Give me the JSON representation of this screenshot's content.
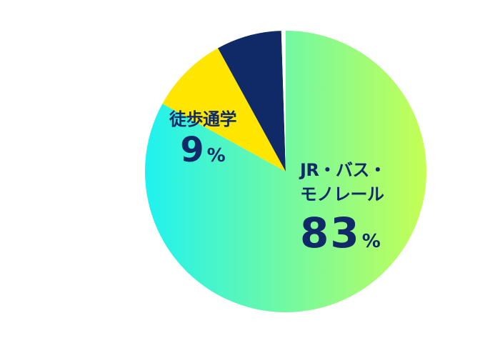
{
  "chart_data": {
    "type": "pie",
    "slices": [
      {
        "label_lines": [
          "JR・バス・",
          "モノレール"
        ],
        "value": 83,
        "display": "83",
        "unit": "%",
        "color_start": "#1ff2f0",
        "color_end": "#c5ff54"
      },
      {
        "label_lines": [
          "徒歩通学"
        ],
        "value": 9,
        "display": "9",
        "unit": "%",
        "color": "#ffe600"
      },
      {
        "label_lines": [],
        "value": 7.5,
        "display": "",
        "unit": "",
        "color": "#0f2a66"
      },
      {
        "label_lines": [],
        "value": 0.5,
        "display": "",
        "unit": "",
        "color": "#ffffff"
      }
    ],
    "start": "12 o'clock",
    "direction": "clockwise",
    "legend": "none"
  }
}
